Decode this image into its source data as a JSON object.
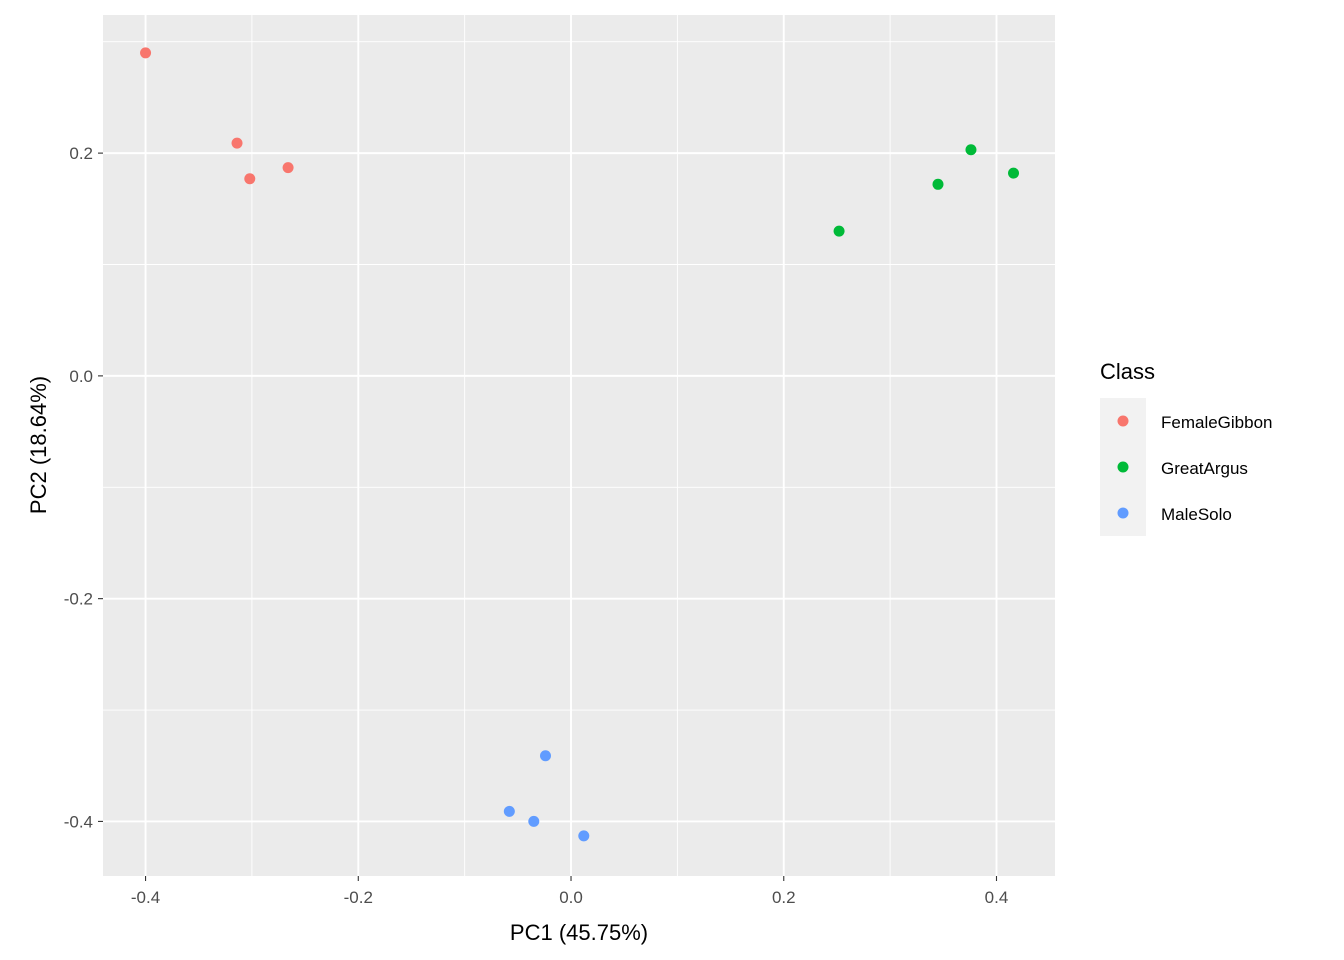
{
  "chart_data": {
    "type": "scatter",
    "title": "",
    "xlabel": "PC1 (45.75%)",
    "ylabel": "PC2 (18.64%)",
    "xlim": [
      -0.44,
      0.455
    ],
    "ylim": [
      -0.449,
      0.324
    ],
    "xticks": [
      -0.4,
      -0.2,
      0.0,
      0.2,
      0.4
    ],
    "xtick_labels": [
      "-0.4",
      "-0.2",
      "0.0",
      "0.2",
      "0.4"
    ],
    "yticks": [
      -0.4,
      -0.2,
      0.0,
      0.2
    ],
    "ytick_labels": [
      "-0.4",
      "-0.2",
      "0.0",
      "0.2"
    ],
    "grid": true,
    "legend": {
      "title": "Class",
      "position": "right"
    },
    "series": [
      {
        "name": "FemaleGibbon",
        "color": "#F8766D",
        "points": [
          [
            -0.4,
            0.29
          ],
          [
            -0.314,
            0.209
          ],
          [
            -0.302,
            0.177
          ],
          [
            -0.266,
            0.187
          ]
        ]
      },
      {
        "name": "GreatArgus",
        "color": "#00BA38",
        "points": [
          [
            0.252,
            0.13
          ],
          [
            0.345,
            0.172
          ],
          [
            0.376,
            0.203
          ],
          [
            0.416,
            0.182
          ]
        ]
      },
      {
        "name": "MaleSolo",
        "color": "#619CFF",
        "points": [
          [
            -0.024,
            -0.341
          ],
          [
            -0.058,
            -0.391
          ],
          [
            -0.035,
            -0.4
          ],
          [
            0.012,
            -0.413
          ]
        ]
      }
    ]
  }
}
